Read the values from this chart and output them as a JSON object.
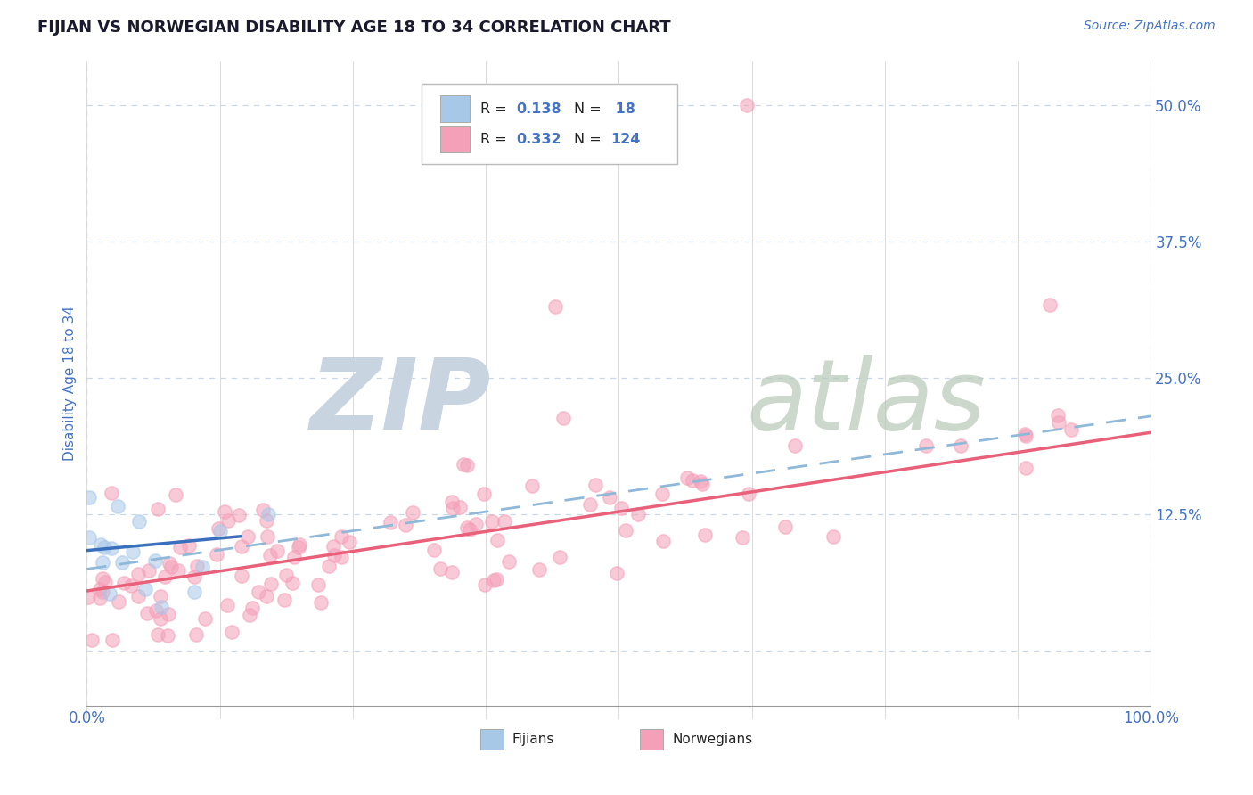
{
  "title": "FIJIAN VS NORWEGIAN DISABILITY AGE 18 TO 34 CORRELATION CHART",
  "source": "Source: ZipAtlas.com",
  "ylabel": "Disability Age 18 to 34",
  "ytick_labels": [
    "",
    "12.5%",
    "25.0%",
    "37.5%",
    "50.0%"
  ],
  "ytick_values": [
    0.0,
    0.125,
    0.25,
    0.375,
    0.5
  ],
  "xlim": [
    0.0,
    1.0
  ],
  "ylim": [
    -0.05,
    0.54
  ],
  "legend_r_fijian": "0.138",
  "legend_n_fijian": "18",
  "legend_r_norwegian": "0.332",
  "legend_n_norwegian": "124",
  "fijian_color": "#a8c8e8",
  "norwegian_color": "#f4a0b8",
  "fijian_line_color": "#3a6fbd",
  "norwegian_line_color": "#e8607a",
  "dashed_line_color": "#a8c8e8",
  "watermark_zip_color": "#c8d8e8",
  "watermark_atlas_color": "#c0c8d0",
  "title_color": "#1a1a2e",
  "source_color": "#4472c4",
  "axis_label_color": "#4472c4",
  "tick_label_color": "#4472c4",
  "grid_color": "#c8d8e8",
  "background_color": "#ffffff",
  "point_size": 120,
  "point_alpha": 0.55,
  "point_linewidth": 1.2
}
